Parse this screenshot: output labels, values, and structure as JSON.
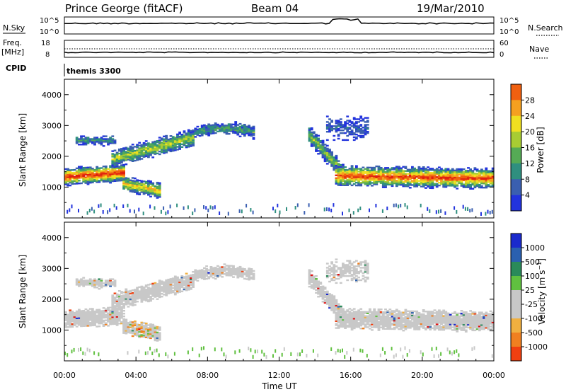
{
  "header": {
    "station": "Prince George (fitACF)",
    "beam": "Beam 04",
    "date": "19/Mar/2010"
  },
  "top_panels": {
    "nsky_label": "N.Sky",
    "nsky_ticks": [
      "10^5",
      "10^0"
    ],
    "nsearch_label": "N.Search",
    "nsearch_ticks": [
      "10^5",
      "10^0"
    ],
    "freq_label": "Freq.",
    "freq_unit": "[MHz]",
    "freq_ticks": [
      "18",
      "8"
    ],
    "nave_label": "Nave",
    "nave_ticks": [
      "60",
      "0"
    ],
    "cpid_label": "CPID",
    "cpid_value": "themis 3300"
  },
  "colors": {
    "power_scale": [
      "#2233dd",
      "#3a5fb0",
      "#2f8f7f",
      "#55aa55",
      "#a8cc33",
      "#f0e020",
      "#f5a020",
      "#f06010",
      "#e02010"
    ],
    "velocity_scale": [
      "#e01010",
      "#f04010",
      "#f08020",
      "#f0b040",
      "#c8c8c8",
      "#c8c8c8",
      "#60c040",
      "#2a8a5a",
      "#2a60b0",
      "#1a2acc"
    ]
  },
  "chart_data": [
    {
      "type": "heatmap",
      "title": "",
      "ylabel": "Slant Range [km]",
      "xlabel": "",
      "ylim": [
        0,
        4500
      ],
      "yticks": [
        "1000",
        "2000",
        "3000",
        "4000"
      ],
      "colorbar_label": "Power [dB]",
      "colorbar_ticks": [
        "4",
        "8",
        "12",
        "16",
        "20",
        "24",
        "28"
      ],
      "colorbar_range": [
        0,
        30
      ],
      "description_series": [
        {
          "time_start_h": 0.0,
          "time_end_h": 3.2,
          "range_km": [
            1000,
            1700
          ],
          "peak_db": 28
        },
        {
          "time_start_h": 2.5,
          "time_end_h": 7.0,
          "range_km": [
            1600,
            2700
          ],
          "peak_db": 16
        },
        {
          "time_start_h": 3.0,
          "time_end_h": 5.5,
          "range_km": [
            650,
            1500
          ],
          "peak_db": 20
        },
        {
          "time_start_h": 14.0,
          "time_end_h": 24.0,
          "range_km": [
            900,
            1900
          ],
          "peak_db": 28
        }
      ]
    },
    {
      "type": "heatmap",
      "title": "",
      "ylabel": "Slant Range [km]",
      "xlabel": "Time UT",
      "ylim": [
        0,
        4500
      ],
      "yticks": [
        "1000",
        "2000",
        "3000",
        "4000"
      ],
      "colorbar_label": "Velocity [m s^-1]",
      "colorbar_ticks": [
        "1000",
        "500",
        "100",
        "25",
        "-25",
        "-100",
        "-500",
        "-1000"
      ],
      "xticks": [
        "00:00",
        "04:00",
        "08:00",
        "12:00",
        "16:00",
        "20:00",
        "00:00"
      ],
      "xlim_hours": [
        0,
        24
      ]
    }
  ]
}
